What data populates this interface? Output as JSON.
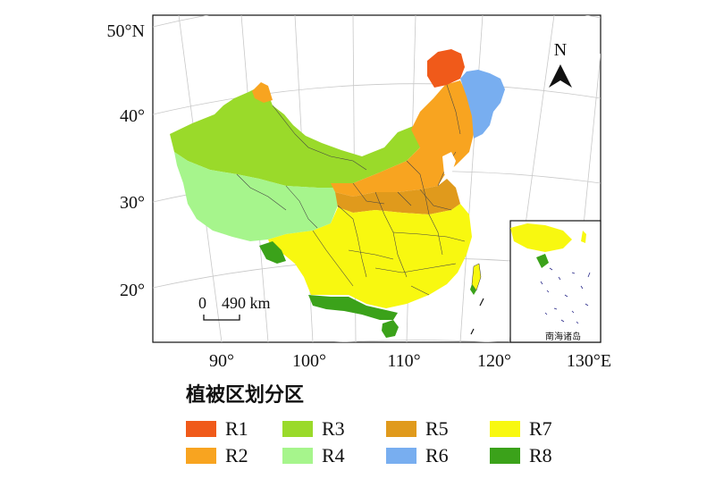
{
  "map": {
    "lat_labels": [
      "50°N",
      "40°",
      "30°",
      "20°"
    ],
    "lon_labels": [
      "90°",
      "100°",
      "110°",
      "120°",
      "130°E"
    ],
    "north_label": "N",
    "scale_bar": {
      "zero": "0",
      "distance": "490 km"
    },
    "inset_label": "南海诸岛"
  },
  "legend": {
    "title": "植被区划分区",
    "items": [
      {
        "label": "R1",
        "color": "#f05a1a"
      },
      {
        "label": "R2",
        "color": "#f8a420"
      },
      {
        "label": "R3",
        "color": "#9ada2a"
      },
      {
        "label": "R4",
        "color": "#a6f58c"
      },
      {
        "label": "R5",
        "color": "#e09a1c"
      },
      {
        "label": "R6",
        "color": "#78aef0"
      },
      {
        "label": "R7",
        "color": "#f8f810"
      },
      {
        "label": "R8",
        "color": "#3ba21a"
      }
    ]
  }
}
